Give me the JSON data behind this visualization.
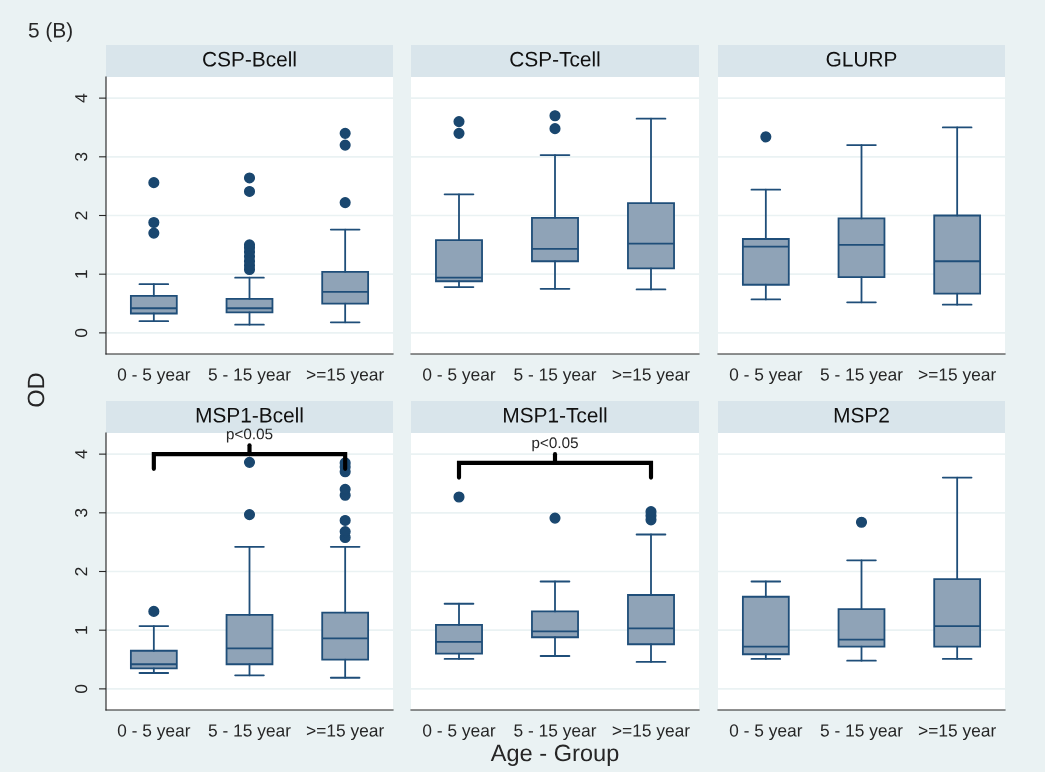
{
  "chart_data": [
    {
      "type": "box",
      "title": "CSP-Bcell",
      "annotations": [
        "5 (B)"
      ],
      "categories": [
        "0 - 5 year",
        "5 - 15 year",
        ">=15 year"
      ],
      "color": "#8fa3b7",
      "ylim": [
        -0.36,
        4.36
      ],
      "yticks": [
        0,
        1,
        2,
        3,
        4
      ],
      "grid": "y",
      "boxes": [
        {
          "low": 0.2,
          "q1": 0.33,
          "median": 0.42,
          "q3": 0.63,
          "high": 0.83,
          "outliers": [
            1.7,
            1.88,
            2.56
          ]
        },
        {
          "low": 0.14,
          "q1": 0.35,
          "median": 0.42,
          "q3": 0.58,
          "high": 0.94,
          "outliers": [
            1.08,
            1.15,
            1.22,
            1.3,
            1.38,
            1.45,
            1.5,
            2.41,
            2.64
          ]
        },
        {
          "low": 0.18,
          "q1": 0.5,
          "median": 0.7,
          "q3": 1.04,
          "high": 1.76,
          "outliers": [
            2.22,
            3.2,
            3.4
          ]
        }
      ]
    },
    {
      "type": "box",
      "title": "CSP-Tcell",
      "categories": [
        "0 - 5 year",
        "5 - 15 year",
        ">=15 year"
      ],
      "color": "#8fa3b7",
      "ylim": [
        -0.36,
        4.36
      ],
      "yticks": [
        0,
        1,
        2,
        3,
        4
      ],
      "grid": "y",
      "tick_labels": "x",
      "boxes": [
        {
          "low": 0.78,
          "q1": 0.88,
          "median": 0.94,
          "q3": 1.58,
          "high": 2.36,
          "outliers": [
            3.4,
            3.6
          ]
        },
        {
          "low": 0.75,
          "q1": 1.22,
          "median": 1.43,
          "q3": 1.96,
          "high": 3.03,
          "outliers": [
            3.48,
            3.7
          ]
        },
        {
          "low": 0.74,
          "q1": 1.1,
          "median": 1.52,
          "q3": 2.21,
          "high": 3.65
        }
      ]
    },
    {
      "type": "box",
      "title": "GLURP",
      "categories": [
        "0 - 5 year",
        "5 - 15 year",
        ">=15 year"
      ],
      "color": "#8fa3b7",
      "ylim": [
        -0.36,
        4.36
      ],
      "yticks": [
        0,
        1,
        2,
        3,
        4
      ],
      "grid": "y",
      "tick_labels": "x",
      "boxes": [
        {
          "low": 0.57,
          "q1": 0.82,
          "median": 1.47,
          "q3": 1.6,
          "high": 2.44,
          "outliers": [
            3.34
          ]
        },
        {
          "low": 0.52,
          "q1": 0.95,
          "median": 1.5,
          "q3": 1.95,
          "high": 3.2
        },
        {
          "low": 0.48,
          "q1": 0.67,
          "median": 1.22,
          "q3": 2.0,
          "high": 3.5
        }
      ]
    },
    {
      "type": "box",
      "title": "MSP1-Bcell",
      "ylabel": "OD",
      "annotations": [
        "p<0.05"
      ],
      "categories": [
        "0 - 5 year",
        "5 - 15 year",
        ">=15 year"
      ],
      "color": "#8fa3b7",
      "ylim": [
        -0.36,
        4.36
      ],
      "yticks": [
        0,
        1,
        2,
        3,
        4
      ],
      "grid": "y",
      "boxes": [
        {
          "low": 0.27,
          "q1": 0.35,
          "median": 0.42,
          "q3": 0.65,
          "high": 1.07,
          "outliers": [
            1.32
          ]
        },
        {
          "low": 0.23,
          "q1": 0.42,
          "median": 0.69,
          "q3": 1.26,
          "high": 2.42,
          "outliers": [
            2.97,
            3.86
          ]
        },
        {
          "low": 0.19,
          "q1": 0.5,
          "median": 0.86,
          "q3": 1.3,
          "high": 2.42,
          "outliers": [
            2.58,
            2.68,
            2.87,
            3.3,
            3.4,
            3.7,
            3.78,
            3.85
          ]
        }
      ]
    },
    {
      "type": "box",
      "title": "MSP1-Tcell",
      "xlabel": "Age - Group",
      "annotations": [
        "p<0.05"
      ],
      "categories": [
        "0 - 5 year",
        "5 - 15 year",
        ">=15 year"
      ],
      "color": "#8fa3b7",
      "ylim": [
        -0.36,
        4.36
      ],
      "yticks": [
        0,
        1,
        2,
        3,
        4
      ],
      "grid": "y",
      "tick_labels": "x",
      "boxes": [
        {
          "low": 0.51,
          "q1": 0.6,
          "median": 0.8,
          "q3": 1.09,
          "high": 1.45,
          "outliers": [
            3.27
          ]
        },
        {
          "low": 0.56,
          "q1": 0.88,
          "median": 0.98,
          "q3": 1.32,
          "high": 1.83,
          "outliers": [
            2.91
          ]
        },
        {
          "low": 0.46,
          "q1": 0.76,
          "median": 1.03,
          "q3": 1.6,
          "high": 2.63,
          "outliers": [
            2.88,
            2.95,
            3.02
          ]
        }
      ]
    },
    {
      "type": "box",
      "title": "MSP2",
      "categories": [
        "0 - 5 year",
        "5 - 15 year",
        ">=15 year"
      ],
      "color": "#8fa3b7",
      "ylim": [
        -0.36,
        4.36
      ],
      "yticks": [
        0,
        1,
        2,
        3,
        4
      ],
      "grid": "y",
      "tick_labels": "x",
      "boxes": [
        {
          "low": 0.51,
          "q1": 0.59,
          "median": 0.72,
          "q3": 1.57,
          "high": 1.83
        },
        {
          "low": 0.48,
          "q1": 0.72,
          "median": 0.84,
          "q3": 1.36,
          "high": 2.19,
          "outliers": [
            2.84
          ]
        },
        {
          "low": 0.51,
          "q1": 0.72,
          "median": 1.07,
          "q3": 1.87,
          "high": 3.6
        }
      ]
    }
  ]
}
